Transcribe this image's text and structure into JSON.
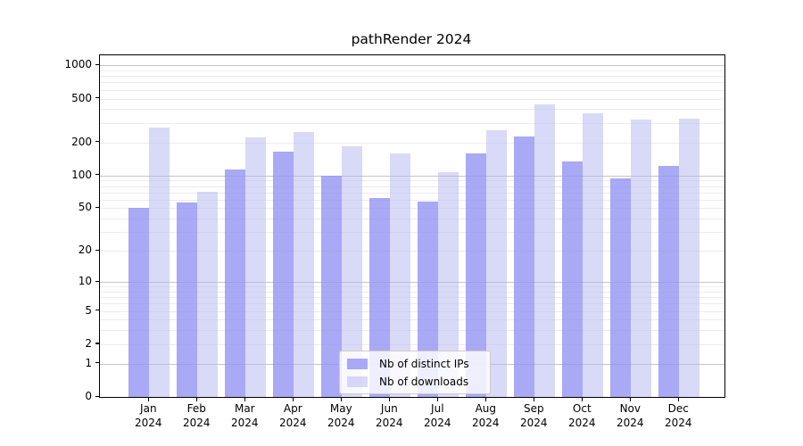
{
  "title": "pathRender 2024",
  "chart_data": {
    "type": "bar",
    "title": "pathRender 2024",
    "categories": [
      "Jan",
      "Feb",
      "Mar",
      "Apr",
      "May",
      "Jun",
      "Jul",
      "Aug",
      "Sep",
      "Oct",
      "Nov",
      "Dec"
    ],
    "category_year": "2024",
    "series": [
      {
        "name": "Nb of distinct IPs",
        "values": [
          50,
          57,
          114,
          166,
          100,
          62,
          58,
          160,
          226,
          134,
          94,
          122
        ]
      },
      {
        "name": "Nb of downloads",
        "values": [
          274,
          71,
          221,
          247,
          183,
          158,
          108,
          260,
          440,
          370,
          321,
          327
        ]
      }
    ],
    "yscale": "log1p",
    "y_tick_labels": [
      1000,
      500,
      200,
      100,
      50,
      20,
      10,
      5,
      2,
      1,
      0
    ],
    "ylim": [
      0,
      1232
    ],
    "grid": "horizontal major(1,10,100,1000) + minor(2-9 per decade)",
    "legend_position": "lower center"
  },
  "colors": {
    "bar_distinct_ips": "#9393f3",
    "bar_distinct_ips_alpha": 0.8,
    "bar_downloads": "#b3b3f1",
    "bar_downloads_alpha": 0.5,
    "grid_major": "#c6c6c6",
    "grid_minor": "#ececec",
    "axis": "#000000",
    "background": "#ffffff"
  }
}
